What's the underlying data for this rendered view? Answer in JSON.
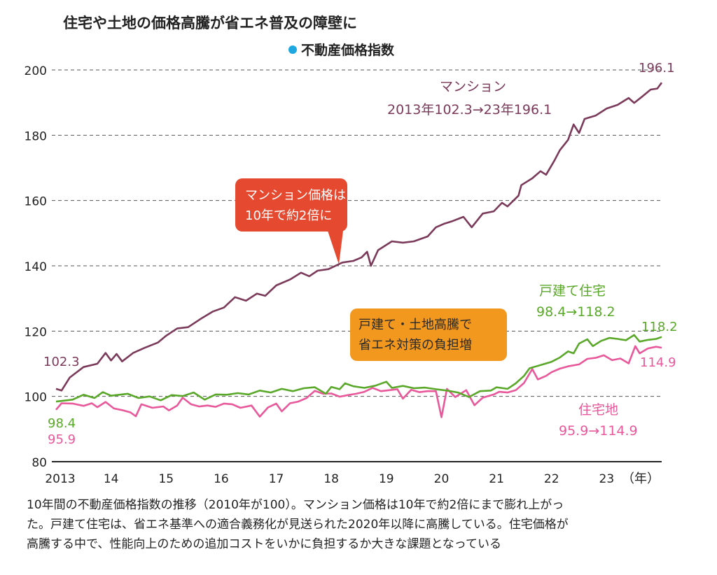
{
  "chart_data": {
    "type": "line",
    "title": "住宅や土地の価格高騰が省エネ普及の障壁に",
    "legend_label": "不動産価格指数",
    "legend_marker_color": "#1ea7e1",
    "ylim": [
      80,
      200
    ],
    "yticks": [
      "80",
      "100",
      "120",
      "140",
      "160",
      "180",
      "200"
    ],
    "xlim": [
      2013,
      2024
    ],
    "xticks": [
      "2013",
      "14",
      "15",
      "16",
      "17",
      "18",
      "19",
      "20",
      "21",
      "22",
      "23"
    ],
    "xunit": "（年）",
    "grid": "horizontal dashed",
    "series": [
      {
        "name": "マンション",
        "color": "#7b3a5a",
        "start_label": "102.3",
        "end_label": "196.1",
        "annotation": [
          "マンション",
          "2013年102.3→23年196.1"
        ],
        "points": [
          [
            2013.0,
            102.3
          ],
          [
            2013.1,
            101.8
          ],
          [
            2013.25,
            105.8
          ],
          [
            2013.5,
            109
          ],
          [
            2013.75,
            110
          ],
          [
            2013.9,
            113.3
          ],
          [
            2014.0,
            111
          ],
          [
            2014.1,
            113
          ],
          [
            2014.2,
            110.7
          ],
          [
            2014.4,
            113.3
          ],
          [
            2014.6,
            114.8
          ],
          [
            2014.85,
            116.5
          ],
          [
            2015.0,
            118.6
          ],
          [
            2015.2,
            120.8
          ],
          [
            2015.4,
            121.2
          ],
          [
            2015.65,
            124
          ],
          [
            2015.85,
            126
          ],
          [
            2016.05,
            127.2
          ],
          [
            2016.25,
            130.4
          ],
          [
            2016.45,
            129.3
          ],
          [
            2016.65,
            131.5
          ],
          [
            2016.8,
            130.8
          ],
          [
            2017.0,
            134
          ],
          [
            2017.25,
            135.8
          ],
          [
            2017.45,
            137.9
          ],
          [
            2017.6,
            136.8
          ],
          [
            2017.75,
            138.5
          ],
          [
            2017.95,
            139
          ],
          [
            2018.2,
            141
          ],
          [
            2018.4,
            141.5
          ],
          [
            2018.55,
            142.6
          ],
          [
            2018.65,
            144.3
          ],
          [
            2018.72,
            140
          ],
          [
            2018.85,
            144.8
          ],
          [
            2019.1,
            147.5
          ],
          [
            2019.3,
            147.1
          ],
          [
            2019.5,
            147.5
          ],
          [
            2019.75,
            149
          ],
          [
            2019.9,
            151.8
          ],
          [
            2020.05,
            152.9
          ],
          [
            2020.2,
            153.7
          ],
          [
            2020.4,
            155
          ],
          [
            2020.55,
            151.8
          ],
          [
            2020.75,
            156
          ],
          [
            2020.95,
            156.7
          ],
          [
            2021.1,
            159.3
          ],
          [
            2021.2,
            158.2
          ],
          [
            2021.4,
            161.5
          ],
          [
            2021.45,
            164.7
          ],
          [
            2021.65,
            166.8
          ],
          [
            2021.8,
            169
          ],
          [
            2021.9,
            167.9
          ],
          [
            2022.05,
            172.2
          ],
          [
            2022.15,
            175.4
          ],
          [
            2022.3,
            178.6
          ],
          [
            2022.4,
            183.3
          ],
          [
            2022.5,
            180.7
          ],
          [
            2022.6,
            185
          ],
          [
            2022.8,
            186
          ],
          [
            2023.0,
            188.2
          ],
          [
            2023.2,
            189.3
          ],
          [
            2023.4,
            191.4
          ],
          [
            2023.5,
            189.9
          ],
          [
            2023.65,
            191.9
          ],
          [
            2023.8,
            194
          ],
          [
            2023.92,
            194.3
          ],
          [
            2024.0,
            196.1
          ]
        ]
      },
      {
        "name": "戸建て住宅",
        "color": "#5aa82a",
        "start_label": "98.4",
        "end_label": "118.2",
        "annotation": [
          "戸建て住宅",
          "98.4→118.2"
        ],
        "points": [
          [
            2013.0,
            98.4
          ],
          [
            2013.3,
            99
          ],
          [
            2013.5,
            100.5
          ],
          [
            2013.7,
            99.5
          ],
          [
            2013.85,
            101.3
          ],
          [
            2014.0,
            100.2
          ],
          [
            2014.3,
            100.8
          ],
          [
            2014.5,
            99.5
          ],
          [
            2014.7,
            100
          ],
          [
            2014.9,
            98.8
          ],
          [
            2015.1,
            100.4
          ],
          [
            2015.3,
            100.1
          ],
          [
            2015.5,
            101.2
          ],
          [
            2015.7,
            99
          ],
          [
            2015.9,
            100.6
          ],
          [
            2016.1,
            100.5
          ],
          [
            2016.3,
            101
          ],
          [
            2016.5,
            100.6
          ],
          [
            2016.7,
            101.8
          ],
          [
            2016.9,
            101.2
          ],
          [
            2017.1,
            102.3
          ],
          [
            2017.3,
            101.6
          ],
          [
            2017.5,
            102.5
          ],
          [
            2017.7,
            102.8
          ],
          [
            2017.9,
            100.8
          ],
          [
            2018.0,
            102.9
          ],
          [
            2018.15,
            102.2
          ],
          [
            2018.25,
            104
          ],
          [
            2018.4,
            103.1
          ],
          [
            2018.6,
            102.6
          ],
          [
            2018.8,
            103.3
          ],
          [
            2019.0,
            104.5
          ],
          [
            2019.1,
            102.6
          ],
          [
            2019.3,
            103.2
          ],
          [
            2019.5,
            102.5
          ],
          [
            2019.7,
            102.7
          ],
          [
            2019.9,
            102.2
          ],
          [
            2020.1,
            101.8
          ],
          [
            2020.3,
            101.2
          ],
          [
            2020.5,
            99.8
          ],
          [
            2020.7,
            101.6
          ],
          [
            2020.9,
            101.8
          ],
          [
            2021.0,
            102.8
          ],
          [
            2021.2,
            102.3
          ],
          [
            2021.35,
            104
          ],
          [
            2021.5,
            106.3
          ],
          [
            2021.6,
            108.6
          ],
          [
            2021.8,
            109.6
          ],
          [
            2022.0,
            110.6
          ],
          [
            2022.15,
            111.9
          ],
          [
            2022.3,
            113.8
          ],
          [
            2022.4,
            113.2
          ],
          [
            2022.5,
            116.2
          ],
          [
            2022.65,
            117.5
          ],
          [
            2022.75,
            115.4
          ],
          [
            2022.9,
            117
          ],
          [
            2023.05,
            117.9
          ],
          [
            2023.2,
            117.6
          ],
          [
            2023.35,
            117.2
          ],
          [
            2023.5,
            118.8
          ],
          [
            2023.6,
            116.8
          ],
          [
            2023.75,
            117.3
          ],
          [
            2023.9,
            117.6
          ],
          [
            2024.0,
            118.2
          ]
        ]
      },
      {
        "name": "住宅地",
        "color": "#e8589a",
        "start_label": "95.9",
        "end_label": "114.9",
        "annotation": [
          "住宅地",
          "95.9→114.9"
        ],
        "points": [
          [
            2013.0,
            95.9
          ],
          [
            2013.1,
            97.9
          ],
          [
            2013.3,
            97.8
          ],
          [
            2013.5,
            97.1
          ],
          [
            2013.65,
            97.9
          ],
          [
            2013.75,
            96.7
          ],
          [
            2013.9,
            98.3
          ],
          [
            2014.05,
            96.3
          ],
          [
            2014.2,
            95.8
          ],
          [
            2014.35,
            95.1
          ],
          [
            2014.45,
            93.9
          ],
          [
            2014.55,
            97.6
          ],
          [
            2014.75,
            96.5
          ],
          [
            2014.95,
            96.9
          ],
          [
            2015.05,
            95.7
          ],
          [
            2015.2,
            97.2
          ],
          [
            2015.3,
            99.6
          ],
          [
            2015.45,
            97.6
          ],
          [
            2015.6,
            96.9
          ],
          [
            2015.75,
            97.2
          ],
          [
            2015.9,
            96.8
          ],
          [
            2016.05,
            97.8
          ],
          [
            2016.2,
            97.6
          ],
          [
            2016.35,
            96.5
          ],
          [
            2016.55,
            97.2
          ],
          [
            2016.7,
            93.8
          ],
          [
            2016.85,
            96.6
          ],
          [
            2017.0,
            97.8
          ],
          [
            2017.1,
            95.4
          ],
          [
            2017.25,
            97.9
          ],
          [
            2017.4,
            98.4
          ],
          [
            2017.55,
            99.5
          ],
          [
            2017.7,
            101.7
          ],
          [
            2017.85,
            100.8
          ],
          [
            2018.0,
            100.9
          ],
          [
            2018.15,
            99.9
          ],
          [
            2018.3,
            100.4
          ],
          [
            2018.45,
            100.8
          ],
          [
            2018.6,
            101.4
          ],
          [
            2018.75,
            102.6
          ],
          [
            2018.9,
            101.6
          ],
          [
            2019.05,
            101.9
          ],
          [
            2019.2,
            102.2
          ],
          [
            2019.3,
            99.3
          ],
          [
            2019.45,
            102
          ],
          [
            2019.6,
            101.3
          ],
          [
            2019.75,
            101.6
          ],
          [
            2019.9,
            101.6
          ],
          [
            2020.0,
            93.6
          ],
          [
            2020.1,
            102.3
          ],
          [
            2020.25,
            99.8
          ],
          [
            2020.45,
            101.9
          ],
          [
            2020.6,
            97.3
          ],
          [
            2020.75,
            99.6
          ],
          [
            2020.95,
            100.6
          ],
          [
            2021.05,
            101.4
          ],
          [
            2021.2,
            101.2
          ],
          [
            2021.35,
            101.9
          ],
          [
            2021.5,
            104.1
          ],
          [
            2021.65,
            108.4
          ],
          [
            2021.75,
            105.2
          ],
          [
            2021.9,
            106.3
          ],
          [
            2022.0,
            107.4
          ],
          [
            2022.15,
            108.5
          ],
          [
            2022.3,
            109.2
          ],
          [
            2022.5,
            109.8
          ],
          [
            2022.65,
            111.5
          ],
          [
            2022.8,
            111.8
          ],
          [
            2022.95,
            112.6
          ],
          [
            2023.1,
            111.1
          ],
          [
            2023.25,
            111.6
          ],
          [
            2023.4,
            110.1
          ],
          [
            2023.52,
            115.4
          ],
          [
            2023.6,
            113.2
          ],
          [
            2023.75,
            114.7
          ],
          [
            2023.9,
            115.2
          ],
          [
            2024.0,
            114.9
          ]
        ]
      }
    ],
    "callouts": [
      {
        "lines": [
          "マンション価格は",
          "10年で約2倍に"
        ],
        "color": "#e5492f",
        "text_color": "#ffffff"
      },
      {
        "lines": [
          "戸建て・土地高騰で",
          "省エネ対策の負担増"
        ],
        "color": "#f3981e",
        "text_color": "#2a2a2a"
      }
    ]
  },
  "caption": [
    "10年間の不動産価格指数の推移（2010年が100）。マンション価格は10年で約2倍にまで膨れ上がっ",
    "た。戸建て住宅は、省エネ基準への適合義務化が見送られた2020年以降に高騰している。住宅価格が",
    "高騰する中で、性能向上のための追加コストをいかに負担するか大きな課題となっている"
  ]
}
